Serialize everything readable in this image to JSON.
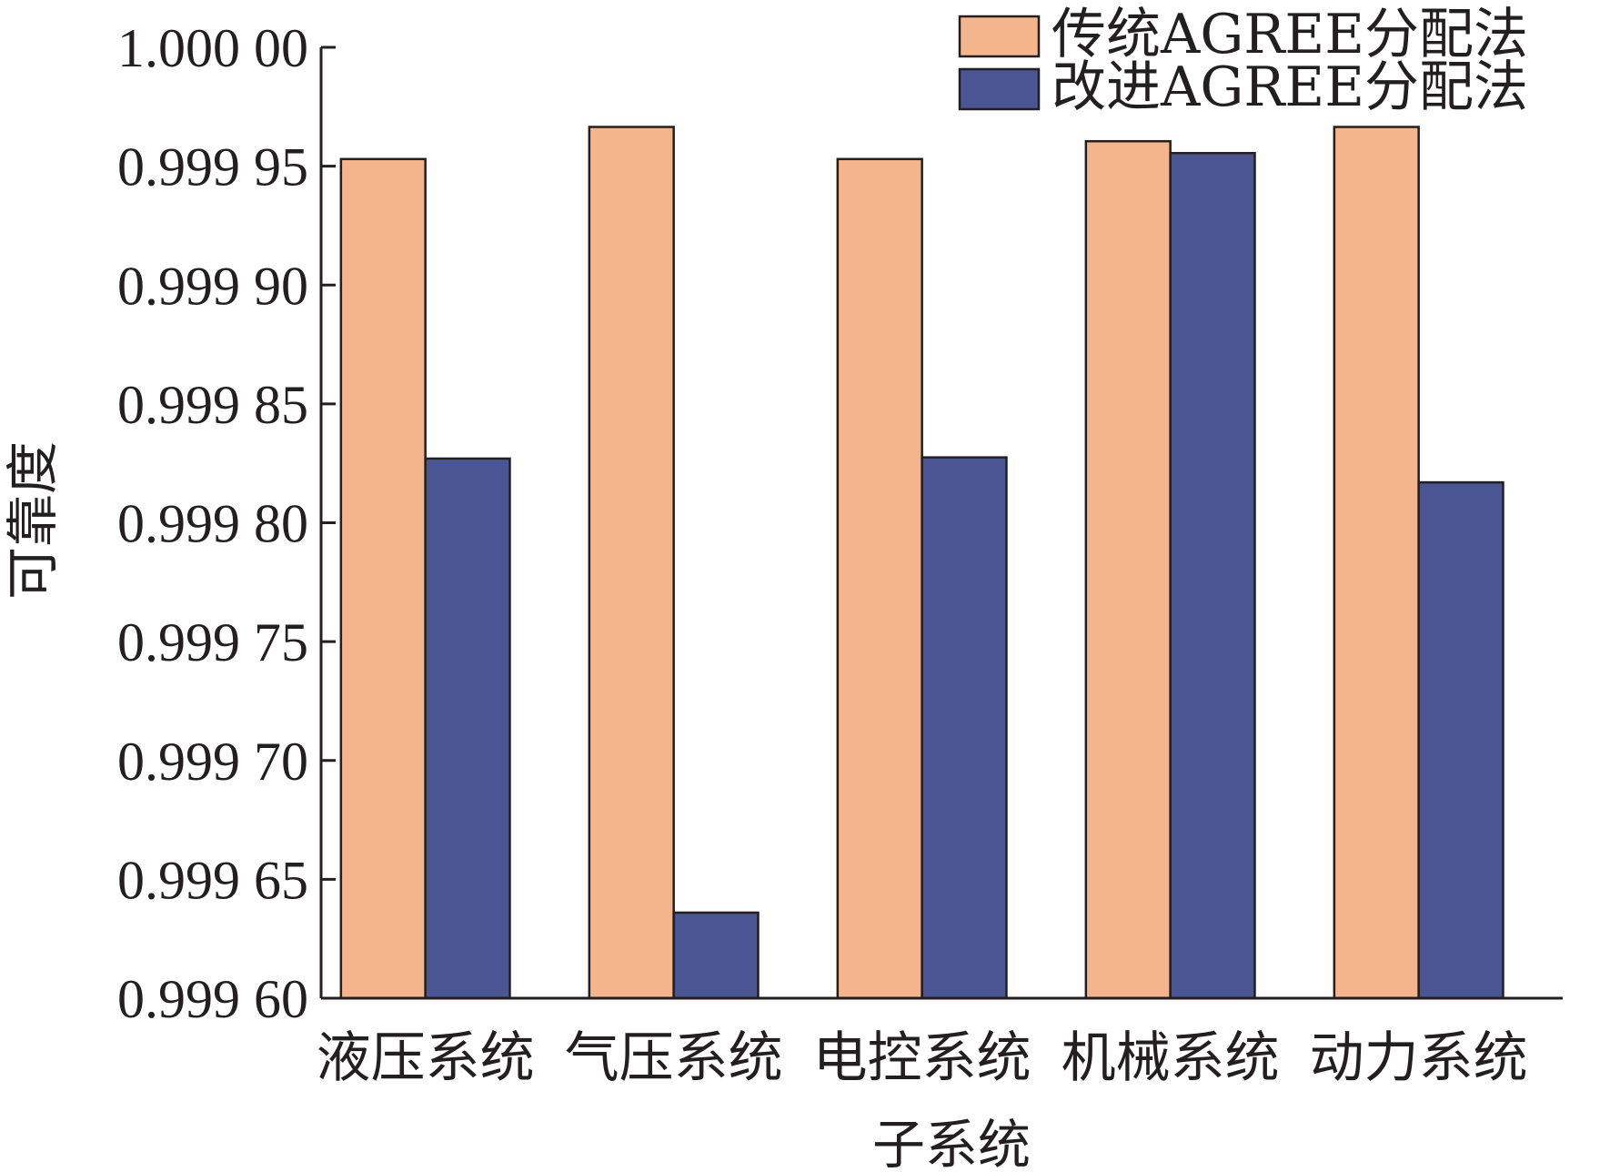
{
  "chart_data": {
    "type": "bar",
    "title": "",
    "xlabel": "子系统",
    "ylabel": "可靠度",
    "categories": [
      "液压系统",
      "气压系统",
      "电控系统",
      "机械系统",
      "动力系统"
    ],
    "series": [
      {
        "name": "传统AGREE分配法",
        "color": "#f4b48c",
        "values": [
          0.999953,
          0.9999665,
          0.999953,
          0.9999605,
          0.9999665
        ]
      },
      {
        "name": "改进AGREE分配法",
        "color": "#4a5593",
        "values": [
          0.999827,
          0.999636,
          0.9998275,
          0.9999555,
          0.999817
        ]
      }
    ],
    "ylim": [
      0.9996,
      1.0
    ],
    "yticks": [
      1.0,
      0.99995,
      0.9999,
      0.99985,
      0.9998,
      0.99975,
      0.9997,
      0.99965,
      0.9996
    ],
    "ytick_labels": [
      "1.000 00",
      "0.999 95",
      "0.999 90",
      "0.999 85",
      "0.999 80",
      "0.999 75",
      "0.999 70",
      "0.999 65",
      "0.999 60"
    ],
    "grid": false,
    "legend_position": "top-right"
  }
}
